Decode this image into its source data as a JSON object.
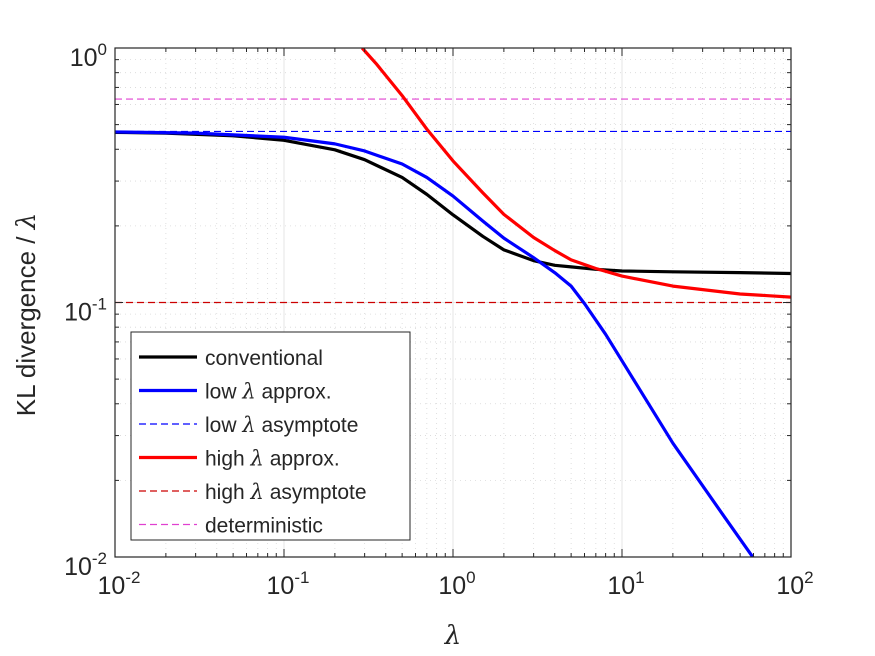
{
  "chart_data": {
    "type": "line",
    "xscale": "log",
    "yscale": "log",
    "xlim": [
      0.01,
      100
    ],
    "ylim": [
      0.01,
      1
    ],
    "xlabel": "λ",
    "ylabel": "KL divergence / λ",
    "grid": true,
    "x_ticks": [
      {
        "value": 0.01,
        "base": "10",
        "exp": "-2"
      },
      {
        "value": 0.1,
        "base": "10",
        "exp": "-1"
      },
      {
        "value": 1,
        "base": "10",
        "exp": "0"
      },
      {
        "value": 10,
        "base": "10",
        "exp": "1"
      },
      {
        "value": 100,
        "base": "10",
        "exp": "2"
      }
    ],
    "y_ticks": [
      {
        "value": 0.01,
        "base": "10",
        "exp": "-2"
      },
      {
        "value": 0.1,
        "base": "10",
        "exp": "-1"
      },
      {
        "value": 1,
        "base": "10",
        "exp": "0"
      }
    ],
    "legend": {
      "placement": "bottom-left",
      "entries": [
        {
          "pre": "conventional",
          "lambda": "",
          "post": "",
          "series": "conventional"
        },
        {
          "pre": "low ",
          "lambda": "λ",
          "post": " approx.",
          "series": "low_approx"
        },
        {
          "pre": "low ",
          "lambda": "λ",
          "post": " asymptote",
          "series": "low_asymptote"
        },
        {
          "pre": "high ",
          "lambda": "λ",
          "post": " approx.",
          "series": "high_approx"
        },
        {
          "pre": "high ",
          "lambda": "λ",
          "post": " asymptote",
          "series": "high_asymptote"
        },
        {
          "pre": "deterministic",
          "lambda": "",
          "post": "",
          "series": "deterministic"
        }
      ]
    },
    "series": [
      {
        "key": "conventional",
        "name": "conventional",
        "color": "#000000",
        "style": "solid",
        "width": 3.2,
        "points": [
          [
            0.01,
            0.466
          ],
          [
            0.02,
            0.463
          ],
          [
            0.05,
            0.452
          ],
          [
            0.1,
            0.434
          ],
          [
            0.2,
            0.398
          ],
          [
            0.3,
            0.364
          ],
          [
            0.5,
            0.31
          ],
          [
            0.7,
            0.266
          ],
          [
            1,
            0.221
          ],
          [
            1.5,
            0.182
          ],
          [
            2,
            0.161
          ],
          [
            3,
            0.146
          ],
          [
            4,
            0.14
          ],
          [
            5,
            0.138
          ],
          [
            7,
            0.135
          ],
          [
            10,
            0.133
          ],
          [
            20,
            0.132
          ],
          [
            50,
            0.131
          ],
          [
            100,
            0.13
          ]
        ]
      },
      {
        "key": "low_approx",
        "name": "low λ approx.",
        "color": "#0000ff",
        "style": "solid",
        "width": 3.2,
        "points": [
          [
            0.01,
            0.468
          ],
          [
            0.03,
            0.463
          ],
          [
            0.1,
            0.446
          ],
          [
            0.2,
            0.42
          ],
          [
            0.3,
            0.394
          ],
          [
            0.5,
            0.35
          ],
          [
            0.7,
            0.31
          ],
          [
            1,
            0.262
          ],
          [
            1.5,
            0.209
          ],
          [
            2,
            0.179
          ],
          [
            3,
            0.15
          ],
          [
            4,
            0.131
          ],
          [
            5,
            0.116
          ],
          [
            6,
            0.099
          ],
          [
            8,
            0.075
          ],
          [
            10,
            0.059
          ],
          [
            20,
            0.028
          ],
          [
            40,
            0.0145
          ],
          [
            60,
            0.0099
          ]
        ]
      },
      {
        "key": "low_asymptote",
        "name": "low λ asymptote",
        "color": "#0000ff",
        "style": "dashed",
        "width": 1.2,
        "points": [
          [
            0.01,
            0.47
          ],
          [
            100,
            0.47
          ]
        ]
      },
      {
        "key": "high_approx",
        "name": "high λ approx.",
        "color": "#ff0000",
        "style": "solid",
        "width": 3.2,
        "points": [
          [
            0.29,
            1.0
          ],
          [
            0.35,
            0.87
          ],
          [
            0.5,
            0.65
          ],
          [
            0.7,
            0.48
          ],
          [
            1,
            0.36
          ],
          [
            1.5,
            0.27
          ],
          [
            2,
            0.222
          ],
          [
            3,
            0.18
          ],
          [
            4,
            0.16
          ],
          [
            5,
            0.147
          ],
          [
            7,
            0.136
          ],
          [
            10,
            0.127
          ],
          [
            20,
            0.116
          ],
          [
            50,
            0.108
          ],
          [
            100,
            0.105
          ]
        ]
      },
      {
        "key": "high_asymptote",
        "name": "high λ asymptote",
        "color": "#cc0000",
        "style": "dashed",
        "width": 1.2,
        "points": [
          [
            0.01,
            0.1
          ],
          [
            100,
            0.1
          ]
        ]
      },
      {
        "key": "deterministic",
        "name": "deterministic",
        "color": "#e040d0",
        "style": "dashed",
        "width": 1.2,
        "points": [
          [
            0.01,
            0.63
          ],
          [
            100,
            0.63
          ]
        ]
      }
    ]
  }
}
